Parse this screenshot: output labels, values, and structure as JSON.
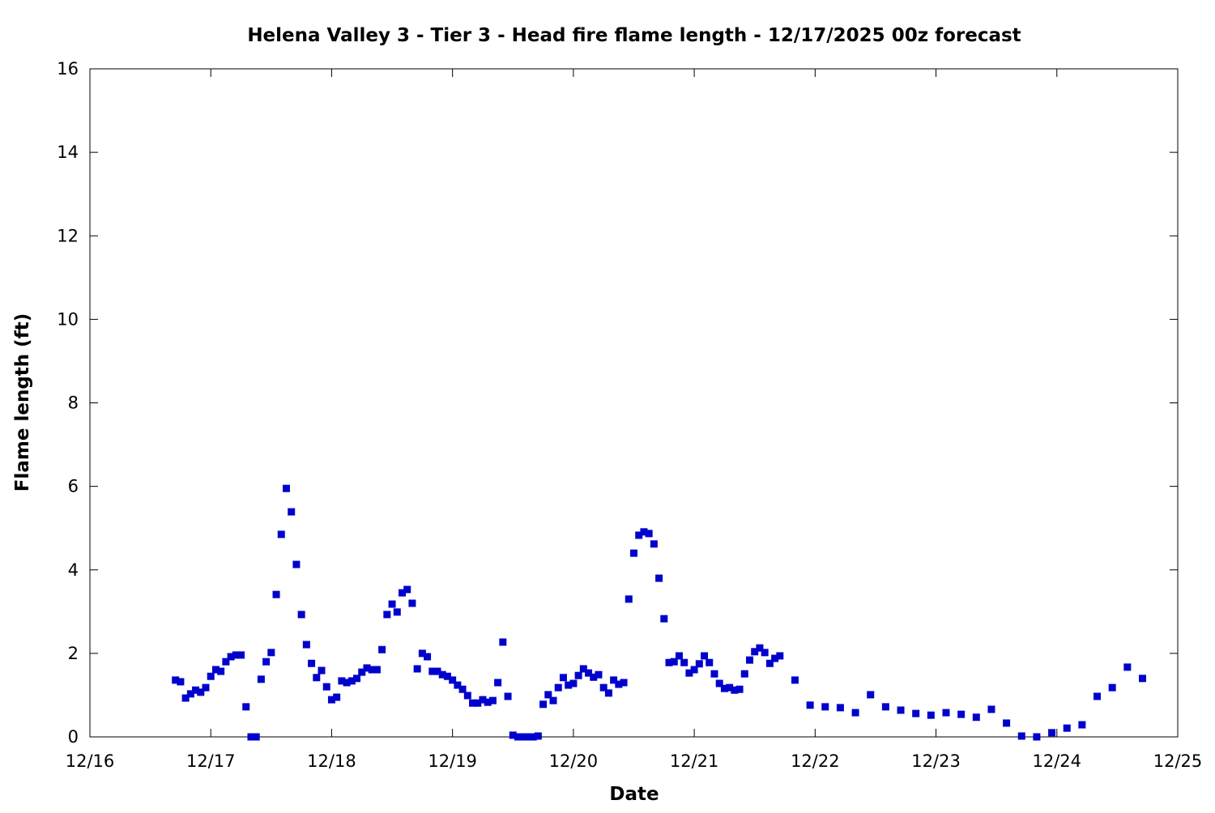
{
  "chart_data": {
    "type": "scatter",
    "title": "Helena Valley 3 - Tier 3 - Head fire flame length - 12/17/2025 00z forecast",
    "xlabel": "Date",
    "ylabel": "Flame length (ft)",
    "x_unit": "hours since 12/16 00z",
    "xlim": [
      0,
      216
    ],
    "ylim": [
      0,
      16
    ],
    "x_ticks": [
      {
        "hour": 0,
        "label": "12/16"
      },
      {
        "hour": 24,
        "label": "12/17"
      },
      {
        "hour": 48,
        "label": "12/18"
      },
      {
        "hour": 72,
        "label": "12/19"
      },
      {
        "hour": 96,
        "label": "12/20"
      },
      {
        "hour": 120,
        "label": "12/21"
      },
      {
        "hour": 144,
        "label": "12/22"
      },
      {
        "hour": 168,
        "label": "12/23"
      },
      {
        "hour": 192,
        "label": "12/24"
      },
      {
        "hour": 216,
        "label": "12/25"
      }
    ],
    "y_ticks": [
      "0",
      "2",
      "4",
      "6",
      "8",
      "10",
      "12",
      "14",
      "16"
    ],
    "grid": false,
    "marker_color": "#0000cc",
    "segments": [
      {
        "start_hour": 17,
        "step_hours": 1,
        "values": [
          1.36,
          1.32,
          0.93,
          1.03,
          1.12,
          1.07,
          1.18,
          1.45,
          1.61,
          1.57,
          1.8,
          1.92,
          1.96,
          1.96,
          0.72,
          0,
          0,
          1.38,
          1.8,
          2.02,
          3.41,
          4.85,
          5.95,
          5.39,
          4.13,
          2.93,
          2.21,
          1.76,
          1.42,
          1.59,
          1.2,
          0.89,
          0.95,
          1.34,
          1.3,
          1.34,
          1.4,
          1.55,
          1.65,
          1.61,
          1.61,
          2.09,
          2.93,
          3.18,
          2.99,
          3.45,
          3.53,
          3.2,
          1.63,
          2.0,
          1.92,
          1.57,
          1.57,
          1.49,
          1.45,
          1.36,
          1.24,
          1.14,
          0.99,
          0.81,
          0.81,
          0.89,
          0.83,
          0.87,
          1.3,
          2.27,
          0.97,
          0.04,
          0,
          0,
          0,
          0,
          0.02,
          0.78,
          1.01,
          0.87,
          1.18,
          1.42,
          1.24,
          1.28,
          1.47,
          1.63,
          1.53,
          1.43,
          1.49,
          1.18,
          1.05,
          1.36,
          1.26,
          1.3,
          3.3,
          4.4,
          4.83,
          4.91,
          4.87,
          4.62,
          3.8,
          2.83,
          1.78,
          1.8,
          1.94,
          1.78,
          1.53,
          1.61,
          1.75,
          1.94,
          1.78,
          1.51,
          1.28,
          1.16,
          1.18,
          1.12,
          1.14,
          1.51,
          1.84,
          2.04,
          2.13,
          2.02,
          1.76,
          1.88,
          1.94
        ]
      },
      {
        "start_hour": 140,
        "step_hours": 3,
        "values": [
          1.36,
          0.76,
          0.72,
          0.7,
          0.58,
          1.01,
          0.72,
          0.64,
          0.56,
          0.52,
          0.58,
          0.54,
          0.47,
          0.66,
          0.33,
          0.02,
          0,
          0.1,
          0.21,
          0.29,
          0.97,
          1.18,
          1.67,
          1.4
        ]
      }
    ]
  }
}
